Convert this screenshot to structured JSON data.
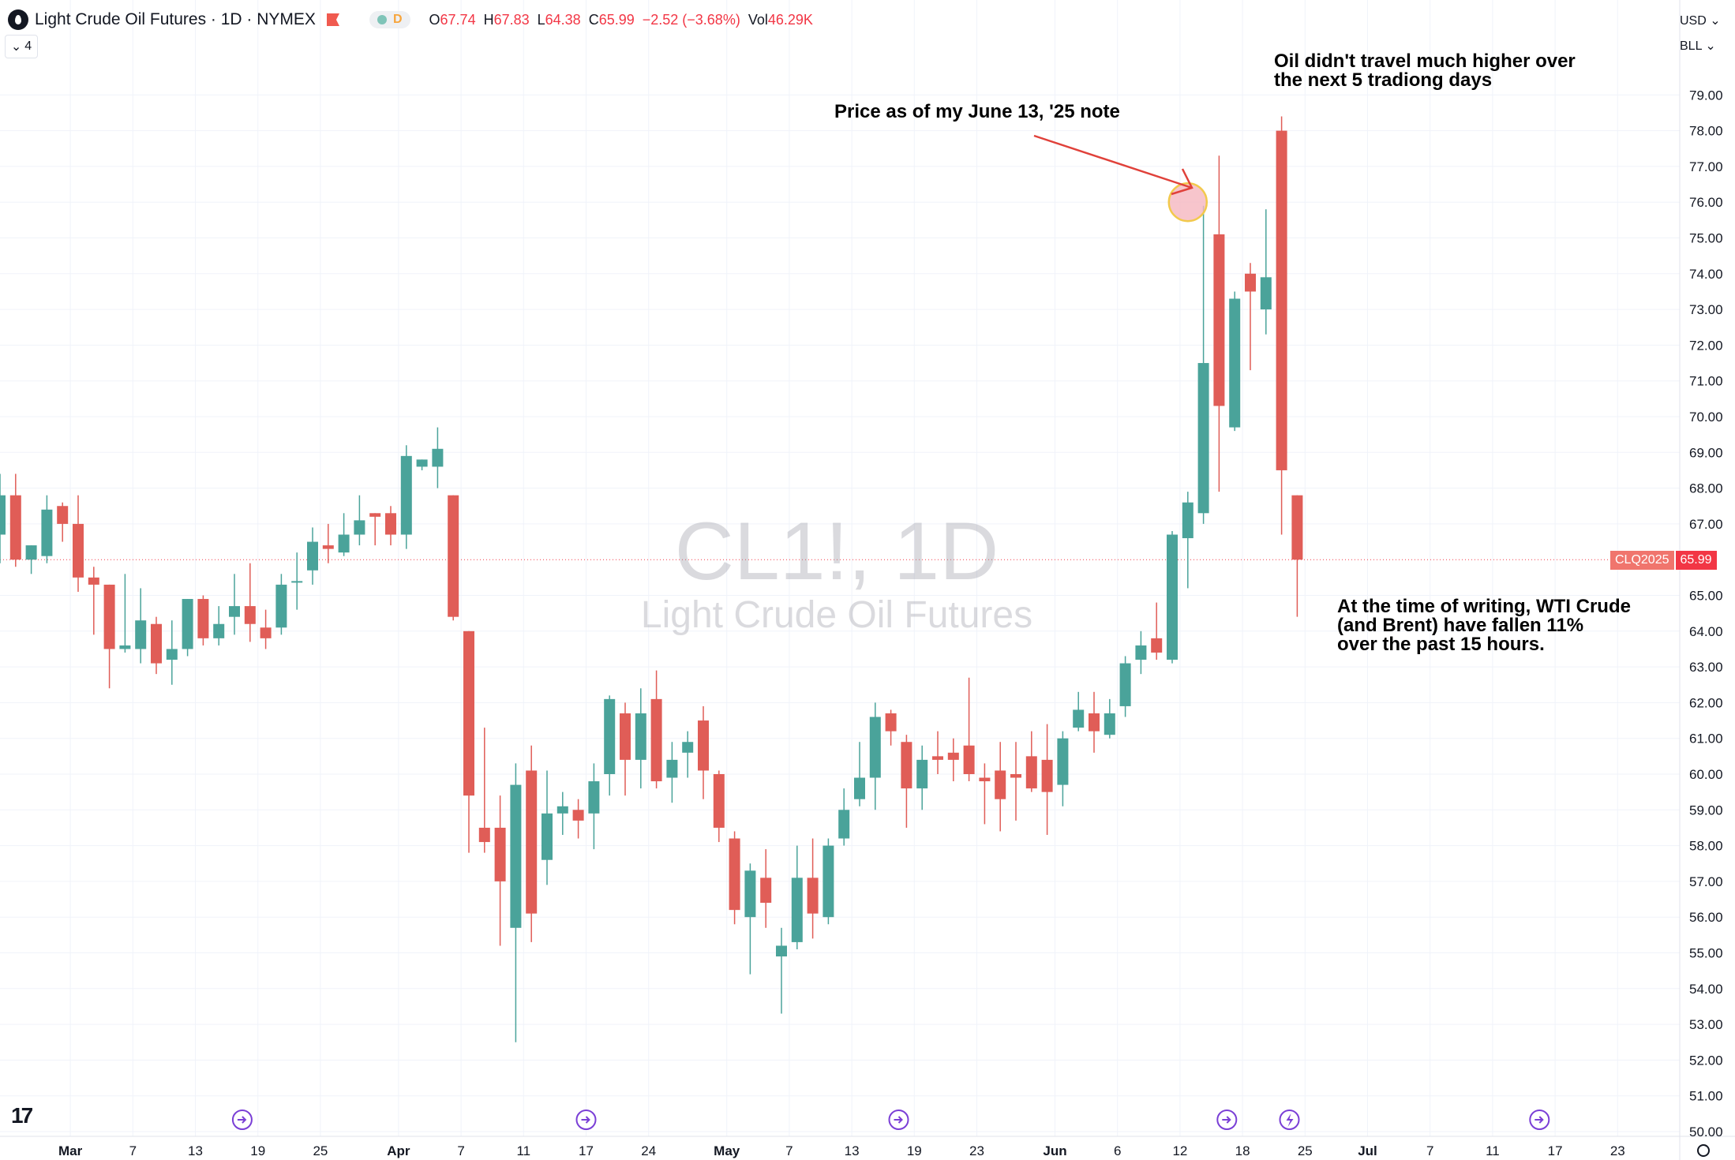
{
  "header": {
    "title": "Light Crude Oil Futures · 1D · NYMEX",
    "pill_label": "D",
    "ohlc": {
      "o_label": "O",
      "o_value": "67.74",
      "h_label": "H",
      "h_value": "67.83",
      "l_label": "L",
      "l_value": "64.38",
      "c_label": "C",
      "c_value": "65.99",
      "change": "−2.52 (−3.68%)",
      "vol_label": "Vol",
      "vol_value": "46.29K"
    },
    "collapse_count": "4"
  },
  "scale": {
    "currency": "USD",
    "unit": "BLL"
  },
  "watermark": {
    "symbol": "CL1!, 1D",
    "name": "Light Crude Oil Futures"
  },
  "price_tag": {
    "contract": "CLQ2025",
    "value": "65.99"
  },
  "annotations": {
    "note1": "Price as of my June 13, '25 note",
    "note2_line1": "Oil didn't travel much higher over",
    "note2_line2": "the next 5 tradiong days",
    "note3_line1": "At the time of writing, WTI Crude",
    "note3_line2": "(and Brent) have fallen 11%",
    "note3_line3": "over the past 15 hours."
  },
  "colors": {
    "up": "#4aa39a",
    "down": "#e05d57",
    "grid": "#f0f3fa",
    "price_line": "#f23645",
    "event_icon": "#7a3fd6",
    "arrow": "#e0413a",
    "circle_fill": "#f5b7bf",
    "circle_stroke": "#f2c94c"
  },
  "chart_data": {
    "type": "candlestick",
    "title": "Light Crude Oil Futures · 1D · NYMEX",
    "ylim": [
      50,
      79.5
    ],
    "y_ticks": [
      "79.00",
      "78.00",
      "77.00",
      "76.00",
      "75.00",
      "74.00",
      "73.00",
      "72.00",
      "71.00",
      "70.00",
      "69.00",
      "68.00",
      "67.00",
      "65.00",
      "64.00",
      "63.00",
      "62.00",
      "61.00",
      "60.00",
      "59.00",
      "58.00",
      "57.00",
      "56.00",
      "55.00",
      "54.00",
      "53.00",
      "52.00",
      "51.00",
      "50.00"
    ],
    "x_labels": [
      {
        "label": "Mar",
        "bold": true,
        "slot": 4.5
      },
      {
        "label": "7",
        "slot": 8.5
      },
      {
        "label": "13",
        "slot": 12.5
      },
      {
        "label": "19",
        "slot": 16.5
      },
      {
        "label": "25",
        "slot": 20.5
      },
      {
        "label": "Apr",
        "bold": true,
        "slot": 25.5
      },
      {
        "label": "7",
        "slot": 29.5
      },
      {
        "label": "11",
        "slot": 33.5
      },
      {
        "label": "17",
        "slot": 37.5
      },
      {
        "label": "24",
        "slot": 41.5
      },
      {
        "label": "May",
        "bold": true,
        "slot": 46.5
      },
      {
        "label": "7",
        "slot": 50.5
      },
      {
        "label": "13",
        "slot": 54.5
      },
      {
        "label": "19",
        "slot": 58.5
      },
      {
        "label": "23",
        "slot": 62.5
      },
      {
        "label": "Jun",
        "bold": true,
        "slot": 67.5
      },
      {
        "label": "6",
        "slot": 71.5
      },
      {
        "label": "12",
        "slot": 75.5
      },
      {
        "label": "18",
        "slot": 79.5
      },
      {
        "label": "25",
        "slot": 83.5
      },
      {
        "label": "Jul",
        "bold": true,
        "slot": 87.5
      },
      {
        "label": "7",
        "slot": 91.5
      },
      {
        "label": "11",
        "slot": 95.5
      },
      {
        "label": "17",
        "slot": 99.5
      },
      {
        "label": "23",
        "slot": 103.5
      }
    ],
    "series": [
      {
        "o": 66.7,
        "h": 68.4,
        "l": 65.9,
        "c": 67.8
      },
      {
        "o": 67.8,
        "h": 68.4,
        "l": 65.8,
        "c": 66.0
      },
      {
        "o": 66.0,
        "h": 66.4,
        "l": 65.6,
        "c": 66.4
      },
      {
        "o": 66.1,
        "h": 67.8,
        "l": 65.9,
        "c": 67.4
      },
      {
        "o": 67.5,
        "h": 67.6,
        "l": 66.5,
        "c": 67.0
      },
      {
        "o": 67.0,
        "h": 67.8,
        "l": 65.1,
        "c": 65.5
      },
      {
        "o": 65.5,
        "h": 65.8,
        "l": 63.9,
        "c": 65.3
      },
      {
        "o": 65.3,
        "h": 65.3,
        "l": 62.4,
        "c": 63.5
      },
      {
        "o": 63.5,
        "h": 65.6,
        "l": 63.4,
        "c": 63.6
      },
      {
        "o": 63.5,
        "h": 65.2,
        "l": 63.1,
        "c": 64.3
      },
      {
        "o": 64.2,
        "h": 64.4,
        "l": 62.8,
        "c": 63.1
      },
      {
        "o": 63.2,
        "h": 64.3,
        "l": 62.5,
        "c": 63.5
      },
      {
        "o": 63.5,
        "h": 64.9,
        "l": 63.3,
        "c": 64.9
      },
      {
        "o": 64.9,
        "h": 65.0,
        "l": 63.6,
        "c": 63.8
      },
      {
        "o": 63.8,
        "h": 64.7,
        "l": 63.6,
        "c": 64.2
      },
      {
        "o": 64.4,
        "h": 65.6,
        "l": 63.9,
        "c": 64.7
      },
      {
        "o": 64.7,
        "h": 65.9,
        "l": 63.7,
        "c": 64.2
      },
      {
        "o": 64.1,
        "h": 64.6,
        "l": 63.5,
        "c": 63.8
      },
      {
        "o": 64.1,
        "h": 65.6,
        "l": 63.9,
        "c": 65.3
      },
      {
        "o": 65.4,
        "h": 66.2,
        "l": 64.6,
        "c": 65.4
      },
      {
        "o": 65.7,
        "h": 66.9,
        "l": 65.3,
        "c": 66.5
      },
      {
        "o": 66.4,
        "h": 67.0,
        "l": 65.9,
        "c": 66.3
      },
      {
        "o": 66.2,
        "h": 67.3,
        "l": 66.1,
        "c": 66.7
      },
      {
        "o": 66.7,
        "h": 67.8,
        "l": 66.4,
        "c": 67.1
      },
      {
        "o": 67.3,
        "h": 67.3,
        "l": 66.4,
        "c": 67.2
      },
      {
        "o": 67.3,
        "h": 67.5,
        "l": 66.4,
        "c": 66.7
      },
      {
        "o": 66.7,
        "h": 69.2,
        "l": 66.3,
        "c": 68.9
      },
      {
        "o": 68.6,
        "h": 68.8,
        "l": 68.5,
        "c": 68.8
      },
      {
        "o": 68.6,
        "h": 69.7,
        "l": 68.0,
        "c": 69.1
      },
      {
        "o": 67.8,
        "h": 67.8,
        "l": 64.3,
        "c": 64.4
      },
      {
        "o": 64.0,
        "h": 64.0,
        "l": 57.8,
        "c": 59.4
      },
      {
        "o": 58.5,
        "h": 61.3,
        "l": 57.8,
        "c": 58.1
      },
      {
        "o": 58.5,
        "h": 59.4,
        "l": 55.2,
        "c": 57.0
      },
      {
        "o": 55.7,
        "h": 60.3,
        "l": 52.5,
        "c": 59.7
      },
      {
        "o": 60.1,
        "h": 60.8,
        "l": 55.3,
        "c": 56.1
      },
      {
        "o": 57.6,
        "h": 60.1,
        "l": 56.9,
        "c": 58.9
      },
      {
        "o": 58.9,
        "h": 59.5,
        "l": 58.3,
        "c": 59.1
      },
      {
        "o": 59.0,
        "h": 59.3,
        "l": 58.2,
        "c": 58.7
      },
      {
        "o": 58.9,
        "h": 60.3,
        "l": 57.9,
        "c": 59.8
      },
      {
        "o": 60.0,
        "h": 62.2,
        "l": 59.4,
        "c": 62.1
      },
      {
        "o": 61.7,
        "h": 62.0,
        "l": 59.4,
        "c": 60.4
      },
      {
        "o": 60.4,
        "h": 62.4,
        "l": 59.6,
        "c": 61.7
      },
      {
        "o": 62.1,
        "h": 62.9,
        "l": 59.6,
        "c": 59.8
      },
      {
        "o": 59.9,
        "h": 60.9,
        "l": 59.2,
        "c": 60.4
      },
      {
        "o": 60.6,
        "h": 61.2,
        "l": 59.9,
        "c": 60.9
      },
      {
        "o": 61.5,
        "h": 61.9,
        "l": 59.3,
        "c": 60.1
      },
      {
        "o": 60.0,
        "h": 60.1,
        "l": 58.1,
        "c": 58.5
      },
      {
        "o": 58.2,
        "h": 58.4,
        "l": 55.8,
        "c": 56.2
      },
      {
        "o": 56.0,
        "h": 57.5,
        "l": 54.4,
        "c": 57.3
      },
      {
        "o": 57.1,
        "h": 57.9,
        "l": 55.7,
        "c": 56.4
      },
      {
        "o": 54.9,
        "h": 55.7,
        "l": 53.3,
        "c": 55.2
      },
      {
        "o": 55.3,
        "h": 58.0,
        "l": 55.1,
        "c": 57.1
      },
      {
        "o": 57.1,
        "h": 58.2,
        "l": 55.4,
        "c": 56.1
      },
      {
        "o": 56.0,
        "h": 58.2,
        "l": 55.8,
        "c": 58.0
      },
      {
        "o": 58.2,
        "h": 59.6,
        "l": 58.0,
        "c": 59.0
      },
      {
        "o": 59.3,
        "h": 60.9,
        "l": 59.1,
        "c": 59.9
      },
      {
        "o": 59.9,
        "h": 62.0,
        "l": 59.0,
        "c": 61.6
      },
      {
        "o": 61.7,
        "h": 61.8,
        "l": 60.8,
        "c": 61.2
      },
      {
        "o": 60.9,
        "h": 61.1,
        "l": 58.5,
        "c": 59.6
      },
      {
        "o": 59.6,
        "h": 60.8,
        "l": 59.0,
        "c": 60.4
      },
      {
        "o": 60.5,
        "h": 61.2,
        "l": 60.0,
        "c": 60.4
      },
      {
        "o": 60.6,
        "h": 61.0,
        "l": 59.8,
        "c": 60.4
      },
      {
        "o": 60.8,
        "h": 62.7,
        "l": 59.8,
        "c": 60.0
      },
      {
        "o": 59.9,
        "h": 60.3,
        "l": 58.6,
        "c": 59.8
      },
      {
        "o": 60.1,
        "h": 60.9,
        "l": 58.4,
        "c": 59.3
      },
      {
        "o": 60.0,
        "h": 60.9,
        "l": 58.7,
        "c": 59.9
      },
      {
        "o": 60.5,
        "h": 61.2,
        "l": 59.5,
        "c": 59.6
      },
      {
        "o": 60.4,
        "h": 61.4,
        "l": 58.3,
        "c": 59.5
      },
      {
        "o": 59.7,
        "h": 61.2,
        "l": 59.1,
        "c": 61.0
      },
      {
        "o": 61.3,
        "h": 62.3,
        "l": 61.2,
        "c": 61.8
      },
      {
        "o": 61.7,
        "h": 62.3,
        "l": 60.6,
        "c": 61.2
      },
      {
        "o": 61.1,
        "h": 62.1,
        "l": 61.0,
        "c": 61.7
      },
      {
        "o": 61.9,
        "h": 63.3,
        "l": 61.6,
        "c": 63.1
      },
      {
        "o": 63.2,
        "h": 64.0,
        "l": 62.8,
        "c": 63.6
      },
      {
        "o": 63.8,
        "h": 64.8,
        "l": 63.2,
        "c": 63.4
      },
      {
        "o": 63.2,
        "h": 66.8,
        "l": 63.1,
        "c": 66.7
      },
      {
        "o": 66.6,
        "h": 67.9,
        "l": 65.2,
        "c": 67.6
      },
      {
        "o": 67.3,
        "h": 75.9,
        "l": 67.0,
        "c": 71.5
      },
      {
        "o": 75.1,
        "h": 77.3,
        "l": 67.9,
        "c": 70.3
      },
      {
        "o": 69.7,
        "h": 73.5,
        "l": 69.6,
        "c": 73.3
      },
      {
        "o": 74.0,
        "h": 74.3,
        "l": 71.3,
        "c": 73.5
      },
      {
        "o": 73.0,
        "h": 75.8,
        "l": 72.3,
        "c": 73.9
      },
      {
        "o": 78.0,
        "h": 78.4,
        "l": 66.7,
        "c": 68.5
      },
      {
        "o": 67.8,
        "h": 67.8,
        "l": 64.4,
        "c": 66.0
      }
    ]
  }
}
